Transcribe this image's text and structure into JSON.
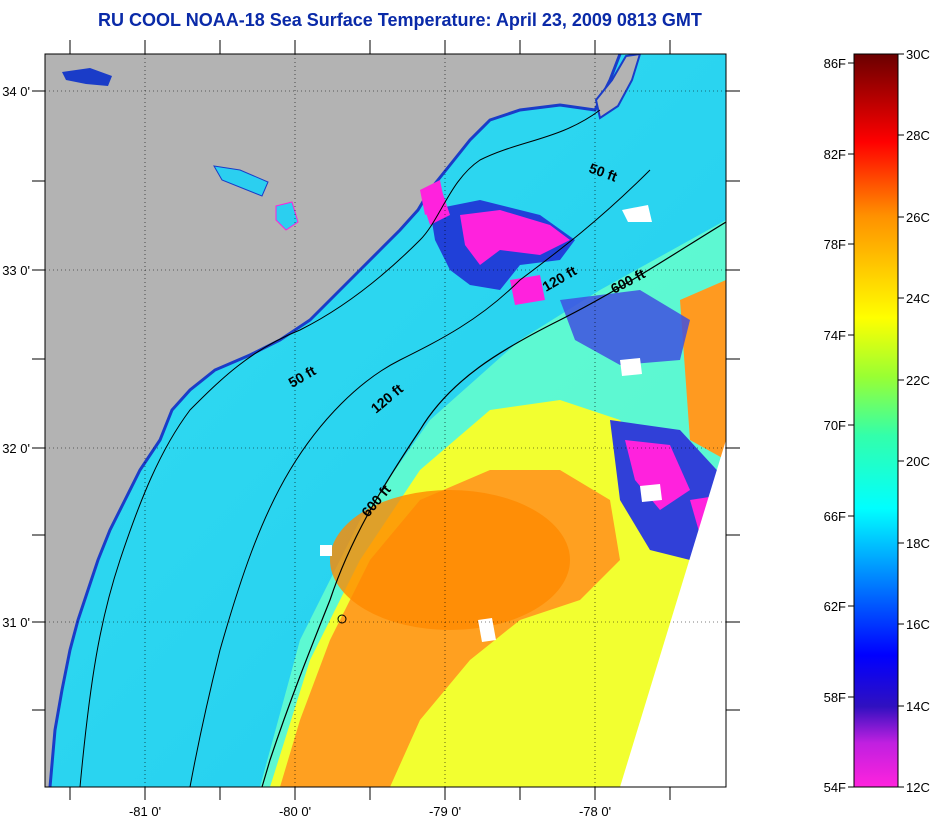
{
  "title": "RU COOL  NOAA-18  Sea Surface Temperature:  April 23, 2009 0813 GMT",
  "map": {
    "lon_ticks": [
      "-81 0'",
      "-80 0'",
      "-79 0'",
      "-78 0'"
    ],
    "lat_ticks": [
      "34 0'",
      "33 0'",
      "32 0'",
      "31 0'"
    ],
    "contours": [
      {
        "label": "50 ft"
      },
      {
        "label": "50 ft"
      },
      {
        "label": "120 ft"
      },
      {
        "label": "120 ft"
      },
      {
        "label": "600 ft"
      },
      {
        "label": "600 ft"
      }
    ]
  },
  "colorbar": {
    "fahrenheit": [
      "86F",
      "82F",
      "78F",
      "74F",
      "70F",
      "66F",
      "62F",
      "58F",
      "54F"
    ],
    "celsius": [
      "30C",
      "28C",
      "26C",
      "24C",
      "22C",
      "20C",
      "18C",
      "16C",
      "14C",
      "12C"
    ],
    "colors": {
      "30": "#7a0000",
      "28": "#ff0000",
      "26": "#ff7a00",
      "24": "#ffff00",
      "22": "#99ff33",
      "20": "#33ffaa",
      "18": "#00ffff",
      "16": "#0066ff",
      "14": "#0000dd",
      "12": "#ff22dd"
    }
  },
  "colors": {
    "land": "#b3b3b3",
    "title": "#0a2aa8",
    "missing": "#ffffff"
  }
}
